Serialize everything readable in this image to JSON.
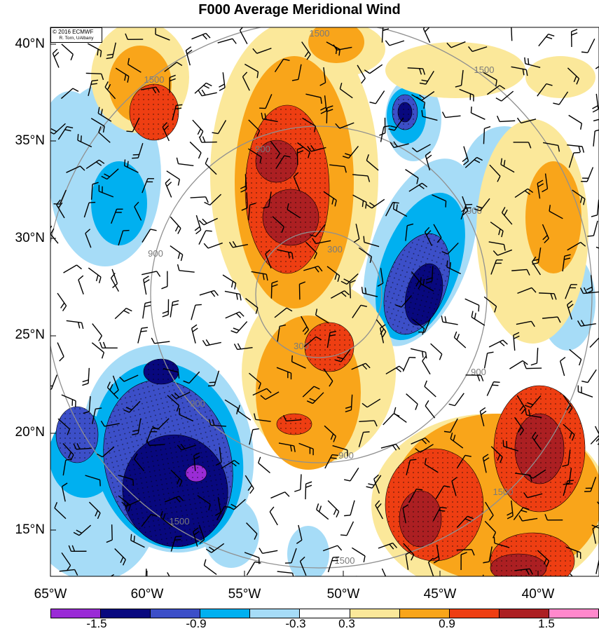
{
  "title": "F000 Average Meridional Wind",
  "credit": {
    "line1": "© 2016 ECMWF",
    "line2": "R. Torn, UAlbany"
  },
  "lat_labels": [
    "40°N",
    "35°N",
    "30°N",
    "25°N",
    "20°N",
    "15°N"
  ],
  "lon_labels": [
    "65°W",
    "60°W",
    "55°W",
    "50°W",
    "45°W",
    "40°W"
  ],
  "contour_labels": [
    "300",
    "900",
    "1500"
  ],
  "colorbar": {
    "labels": [
      "-1.5",
      "-0.9",
      "-0.3",
      "0.3",
      "0.9",
      "1.5"
    ],
    "colors": [
      "#9a2bd6",
      "#08087e",
      "#3c4fc8",
      "#00b0f0",
      "#a6dcf7",
      "#ffffff",
      "#fbe89a",
      "#f9a51a",
      "#ee3e12",
      "#ac1f22",
      "#ff88cc"
    ]
  },
  "shading": {
    "neg_colors": [
      "#a6dcf7",
      "#00b0f0",
      "#3c4fc8",
      "#08087e",
      "#9a2bd6"
    ],
    "pos_colors": [
      "#fbe89a",
      "#f9a51a",
      "#ee3e12",
      "#ac1f22"
    ]
  }
}
